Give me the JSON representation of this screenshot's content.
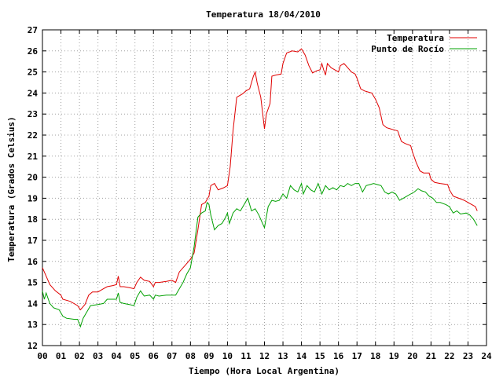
{
  "chart_data": {
    "type": "line",
    "title": "Temperatura 18/04/2010",
    "xlabel": "Tiempo (Hora Local Argentina)",
    "ylabel": "Temperatura (Grados Celsius)",
    "xlim": [
      0,
      24
    ],
    "ylim": [
      12,
      27
    ],
    "grid": true,
    "legend_position": "top-right",
    "x_ticks": [
      "00",
      "01",
      "02",
      "03",
      "04",
      "05",
      "06",
      "07",
      "08",
      "09",
      "10",
      "11",
      "12",
      "13",
      "14",
      "15",
      "16",
      "17",
      "18",
      "19",
      "20",
      "21",
      "22",
      "23",
      "24"
    ],
    "y_ticks": [
      12,
      13,
      14,
      15,
      16,
      17,
      18,
      19,
      20,
      21,
      22,
      23,
      24,
      25,
      26,
      27
    ],
    "series": [
      {
        "name": "Temperatura",
        "color": "#e00000",
        "points": [
          [
            0.0,
            15.7
          ],
          [
            0.2,
            15.3
          ],
          [
            0.4,
            14.9
          ],
          [
            0.7,
            14.6
          ],
          [
            1.0,
            14.4
          ],
          [
            1.1,
            14.2
          ],
          [
            1.5,
            14.1
          ],
          [
            1.9,
            13.9
          ],
          [
            2.05,
            13.7
          ],
          [
            2.3,
            13.95
          ],
          [
            2.5,
            14.4
          ],
          [
            2.7,
            14.55
          ],
          [
            3.0,
            14.55
          ],
          [
            3.3,
            14.7
          ],
          [
            3.5,
            14.8
          ],
          [
            3.8,
            14.85
          ],
          [
            4.0,
            14.9
          ],
          [
            4.1,
            15.3
          ],
          [
            4.2,
            14.8
          ],
          [
            4.4,
            14.8
          ],
          [
            4.7,
            14.75
          ],
          [
            4.95,
            14.7
          ],
          [
            5.1,
            15.0
          ],
          [
            5.3,
            15.25
          ],
          [
            5.5,
            15.1
          ],
          [
            5.8,
            15.05
          ],
          [
            6.0,
            14.8
          ],
          [
            6.1,
            15.0
          ],
          [
            6.3,
            15.0
          ],
          [
            6.7,
            15.05
          ],
          [
            7.0,
            15.1
          ],
          [
            7.2,
            15.0
          ],
          [
            7.4,
            15.5
          ],
          [
            7.7,
            15.8
          ],
          [
            8.0,
            16.1
          ],
          [
            8.2,
            16.4
          ],
          [
            8.4,
            17.5
          ],
          [
            8.6,
            18.7
          ],
          [
            8.8,
            18.8
          ],
          [
            9.0,
            19.1
          ],
          [
            9.1,
            19.6
          ],
          [
            9.3,
            19.7
          ],
          [
            9.5,
            19.4
          ],
          [
            9.8,
            19.5
          ],
          [
            10.0,
            19.6
          ],
          [
            10.15,
            20.5
          ],
          [
            10.3,
            22.2
          ],
          [
            10.5,
            23.8
          ],
          [
            10.8,
            23.95
          ],
          [
            11.0,
            24.1
          ],
          [
            11.2,
            24.2
          ],
          [
            11.4,
            24.8
          ],
          [
            11.5,
            25.0
          ],
          [
            11.6,
            24.5
          ],
          [
            11.8,
            23.8
          ],
          [
            12.0,
            22.3
          ],
          [
            12.1,
            23.0
          ],
          [
            12.3,
            23.5
          ],
          [
            12.4,
            24.8
          ],
          [
            12.6,
            24.85
          ],
          [
            12.9,
            24.9
          ],
          [
            13.0,
            25.4
          ],
          [
            13.2,
            25.9
          ],
          [
            13.5,
            26.0
          ],
          [
            13.8,
            25.95
          ],
          [
            14.0,
            26.1
          ],
          [
            14.2,
            25.8
          ],
          [
            14.4,
            25.3
          ],
          [
            14.6,
            24.95
          ],
          [
            14.8,
            25.05
          ],
          [
            15.0,
            25.1
          ],
          [
            15.1,
            25.4
          ],
          [
            15.2,
            25.1
          ],
          [
            15.3,
            24.85
          ],
          [
            15.4,
            25.4
          ],
          [
            15.6,
            25.2
          ],
          [
            15.8,
            25.1
          ],
          [
            16.0,
            25.0
          ],
          [
            16.1,
            25.3
          ],
          [
            16.3,
            25.4
          ],
          [
            16.5,
            25.2
          ],
          [
            16.7,
            25.0
          ],
          [
            16.9,
            24.9
          ],
          [
            17.0,
            24.7
          ],
          [
            17.2,
            24.2
          ],
          [
            17.4,
            24.1
          ],
          [
            17.6,
            24.05
          ],
          [
            17.8,
            24.0
          ],
          [
            18.0,
            23.7
          ],
          [
            18.2,
            23.3
          ],
          [
            18.4,
            22.5
          ],
          [
            18.6,
            22.35
          ],
          [
            18.8,
            22.3
          ],
          [
            19.0,
            22.25
          ],
          [
            19.2,
            22.2
          ],
          [
            19.4,
            21.7
          ],
          [
            19.6,
            21.6
          ],
          [
            19.9,
            21.5
          ],
          [
            20.0,
            21.2
          ],
          [
            20.2,
            20.7
          ],
          [
            20.4,
            20.3
          ],
          [
            20.6,
            20.2
          ],
          [
            20.9,
            20.2
          ],
          [
            21.0,
            19.9
          ],
          [
            21.2,
            19.75
          ],
          [
            21.5,
            19.7
          ],
          [
            21.9,
            19.65
          ],
          [
            22.0,
            19.4
          ],
          [
            22.2,
            19.1
          ],
          [
            22.5,
            19.0
          ],
          [
            22.8,
            18.9
          ],
          [
            23.0,
            18.8
          ],
          [
            23.2,
            18.7
          ],
          [
            23.4,
            18.6
          ],
          [
            23.5,
            18.4
          ]
        ]
      },
      {
        "name": "Punto de Rocío",
        "color": "#00a000",
        "points": [
          [
            0.0,
            14.6
          ],
          [
            0.1,
            14.2
          ],
          [
            0.2,
            14.5
          ],
          [
            0.4,
            14.0
          ],
          [
            0.6,
            13.8
          ],
          [
            0.9,
            13.7
          ],
          [
            1.1,
            13.4
          ],
          [
            1.3,
            13.3
          ],
          [
            1.7,
            13.25
          ],
          [
            1.9,
            13.25
          ],
          [
            2.05,
            12.9
          ],
          [
            2.2,
            13.3
          ],
          [
            2.4,
            13.6
          ],
          [
            2.6,
            13.9
          ],
          [
            3.0,
            13.95
          ],
          [
            3.3,
            14.0
          ],
          [
            3.5,
            14.2
          ],
          [
            3.8,
            14.2
          ],
          [
            4.0,
            14.2
          ],
          [
            4.1,
            14.5
          ],
          [
            4.2,
            14.05
          ],
          [
            4.4,
            14.0
          ],
          [
            4.7,
            13.95
          ],
          [
            4.95,
            13.9
          ],
          [
            5.1,
            14.3
          ],
          [
            5.3,
            14.6
          ],
          [
            5.5,
            14.35
          ],
          [
            5.8,
            14.4
          ],
          [
            6.0,
            14.2
          ],
          [
            6.1,
            14.4
          ],
          [
            6.3,
            14.35
          ],
          [
            6.7,
            14.4
          ],
          [
            7.0,
            14.4
          ],
          [
            7.2,
            14.4
          ],
          [
            7.4,
            14.7
          ],
          [
            7.6,
            15.0
          ],
          [
            7.8,
            15.4
          ],
          [
            8.0,
            15.7
          ],
          [
            8.2,
            16.7
          ],
          [
            8.4,
            18.1
          ],
          [
            8.6,
            18.3
          ],
          [
            8.8,
            18.4
          ],
          [
            8.9,
            18.8
          ],
          [
            9.0,
            18.7
          ],
          [
            9.1,
            18.2
          ],
          [
            9.3,
            17.5
          ],
          [
            9.5,
            17.7
          ],
          [
            9.7,
            17.8
          ],
          [
            9.9,
            18.1
          ],
          [
            10.0,
            18.3
          ],
          [
            10.1,
            17.8
          ],
          [
            10.3,
            18.3
          ],
          [
            10.5,
            18.5
          ],
          [
            10.7,
            18.4
          ],
          [
            10.9,
            18.7
          ],
          [
            11.1,
            19.0
          ],
          [
            11.3,
            18.4
          ],
          [
            11.5,
            18.5
          ],
          [
            11.7,
            18.2
          ],
          [
            11.9,
            17.8
          ],
          [
            12.0,
            17.6
          ],
          [
            12.2,
            18.6
          ],
          [
            12.4,
            18.9
          ],
          [
            12.6,
            18.85
          ],
          [
            12.8,
            18.9
          ],
          [
            13.0,
            19.2
          ],
          [
            13.2,
            19.0
          ],
          [
            13.4,
            19.6
          ],
          [
            13.6,
            19.4
          ],
          [
            13.8,
            19.3
          ],
          [
            14.0,
            19.7
          ],
          [
            14.1,
            19.2
          ],
          [
            14.3,
            19.6
          ],
          [
            14.5,
            19.4
          ],
          [
            14.7,
            19.3
          ],
          [
            14.9,
            19.7
          ],
          [
            15.1,
            19.2
          ],
          [
            15.3,
            19.6
          ],
          [
            15.5,
            19.4
          ],
          [
            15.7,
            19.5
          ],
          [
            15.9,
            19.4
          ],
          [
            16.1,
            19.6
          ],
          [
            16.3,
            19.55
          ],
          [
            16.5,
            19.7
          ],
          [
            16.7,
            19.6
          ],
          [
            16.9,
            19.7
          ],
          [
            17.1,
            19.7
          ],
          [
            17.3,
            19.3
          ],
          [
            17.5,
            19.6
          ],
          [
            17.7,
            19.65
          ],
          [
            17.9,
            19.7
          ],
          [
            18.1,
            19.65
          ],
          [
            18.3,
            19.6
          ],
          [
            18.5,
            19.3
          ],
          [
            18.7,
            19.2
          ],
          [
            18.9,
            19.3
          ],
          [
            19.1,
            19.2
          ],
          [
            19.3,
            18.9
          ],
          [
            19.5,
            19.0
          ],
          [
            19.7,
            19.1
          ],
          [
            19.9,
            19.2
          ],
          [
            20.1,
            19.3
          ],
          [
            20.3,
            19.45
          ],
          [
            20.5,
            19.35
          ],
          [
            20.7,
            19.3
          ],
          [
            20.9,
            19.1
          ],
          [
            21.1,
            19.0
          ],
          [
            21.3,
            18.8
          ],
          [
            21.5,
            18.8
          ],
          [
            21.8,
            18.7
          ],
          [
            22.0,
            18.6
          ],
          [
            22.2,
            18.3
          ],
          [
            22.4,
            18.4
          ],
          [
            22.6,
            18.25
          ],
          [
            22.9,
            18.3
          ],
          [
            23.1,
            18.2
          ],
          [
            23.3,
            18.0
          ],
          [
            23.5,
            17.7
          ]
        ]
      }
    ]
  }
}
